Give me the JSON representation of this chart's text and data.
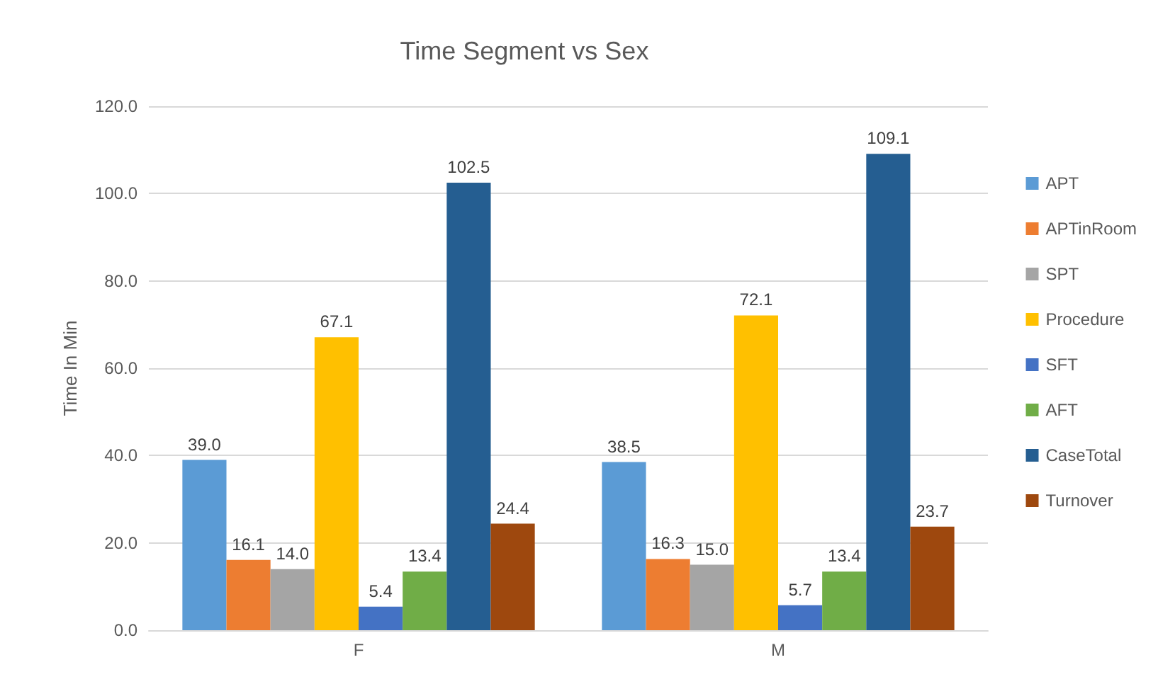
{
  "chart_data": {
    "type": "bar",
    "title": "Time Segment vs Sex",
    "ylabel": "Time In Min",
    "categories": [
      "F",
      "M"
    ],
    "series": [
      {
        "name": "APT",
        "color": "#5b9bd5",
        "values": [
          39.0,
          38.5
        ],
        "value_labels": [
          "39.0",
          "38.5"
        ]
      },
      {
        "name": "APTinRoom",
        "color": "#ed7d31",
        "values": [
          16.1,
          16.3
        ],
        "value_labels": [
          "16.1",
          "16.3"
        ]
      },
      {
        "name": "SPT",
        "color": "#a5a5a5",
        "values": [
          14.0,
          15.0
        ],
        "value_labels": [
          "14.0",
          "15.0"
        ]
      },
      {
        "name": "Procedure",
        "color": "#ffc000",
        "values": [
          67.1,
          72.1
        ],
        "value_labels": [
          "67.1",
          "72.1"
        ]
      },
      {
        "name": "SFT",
        "color": "#4472c4",
        "values": [
          5.4,
          5.7
        ],
        "value_labels": [
          "5.4",
          "5.7"
        ]
      },
      {
        "name": "AFT",
        "color": "#70ad47",
        "values": [
          13.4,
          13.4
        ],
        "value_labels": [
          "13.4",
          "13.4"
        ]
      },
      {
        "name": "CaseTotal",
        "color": "#255e91",
        "values": [
          102.5,
          109.1
        ],
        "value_labels": [
          "102.5",
          "109.1"
        ]
      },
      {
        "name": "Turnover",
        "color": "#9e480e",
        "values": [
          24.4,
          23.7
        ],
        "value_labels": [
          "24.4",
          "23.7"
        ]
      }
    ],
    "ylim": [
      0,
      120
    ],
    "yticks": [
      {
        "value": 0,
        "label": "0.0"
      },
      {
        "value": 20,
        "label": "20.0"
      },
      {
        "value": 40,
        "label": "40.0"
      },
      {
        "value": 60,
        "label": "60.0"
      },
      {
        "value": 80,
        "label": "80.0"
      },
      {
        "value": 100,
        "label": "100.0"
      },
      {
        "value": 120,
        "label": "120.0"
      }
    ],
    "grid": "y",
    "legend": "right"
  }
}
